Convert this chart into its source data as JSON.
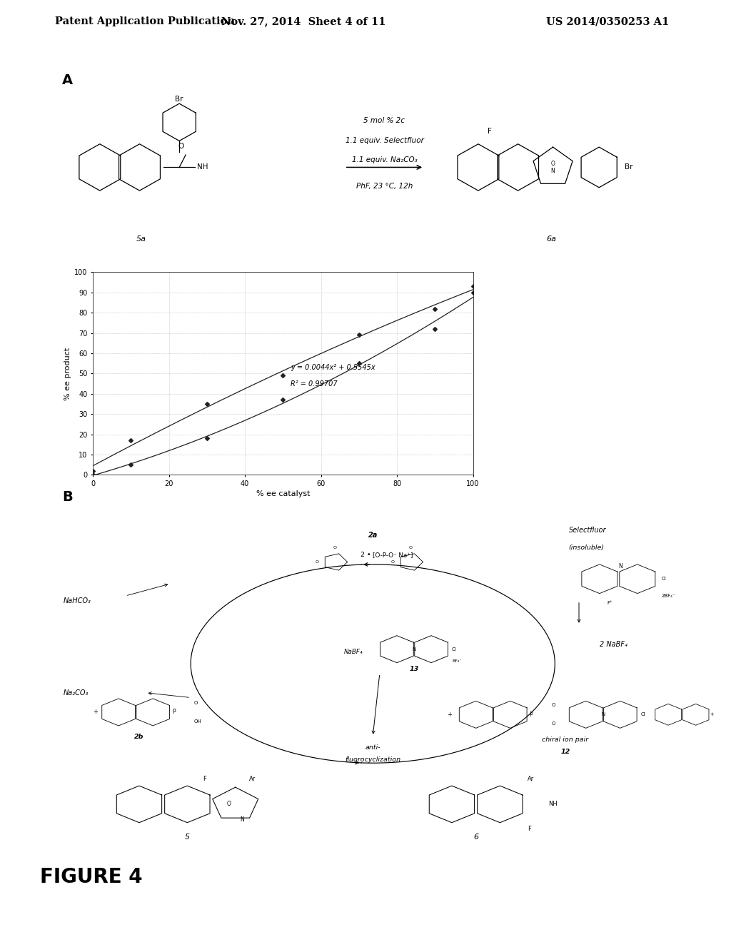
{
  "header_left": "Patent Application Publication",
  "header_mid": "Nov. 27, 2014  Sheet 4 of 11",
  "header_right": "US 2014/0350253 A1",
  "section_a_label": "A",
  "section_b_label": "B",
  "figure_label": "FIGURE 4",
  "plot": {
    "xlabel": "% ee catalyst",
    "ylabel": "% ee product",
    "xlim": [
      0,
      100
    ],
    "ylim": [
      0,
      100
    ],
    "xticks": [
      0,
      20,
      40,
      60,
      80,
      100
    ],
    "yticks": [
      0,
      10,
      20,
      30,
      40,
      50,
      60,
      70,
      80,
      90,
      100
    ],
    "data_x": [
      0,
      10,
      30,
      50,
      70,
      90,
      100
    ],
    "data_y1": [
      2,
      17,
      35,
      49,
      69,
      82,
      93
    ],
    "data_y2": [
      0,
      5,
      18,
      37,
      55,
      72,
      90
    ],
    "equation_line1": "y = 0.0044x² + 0.5545x",
    "equation_line2": "R² = 0.99707",
    "marker": "D",
    "marker_size": 3,
    "line_color": "#222222",
    "marker_color": "#222222",
    "grid_color": "#999999",
    "eq_x": 0.52,
    "eq_y1": 0.53,
    "eq_y2": 0.45
  },
  "bg_color": "#ffffff",
  "text_color": "#000000"
}
